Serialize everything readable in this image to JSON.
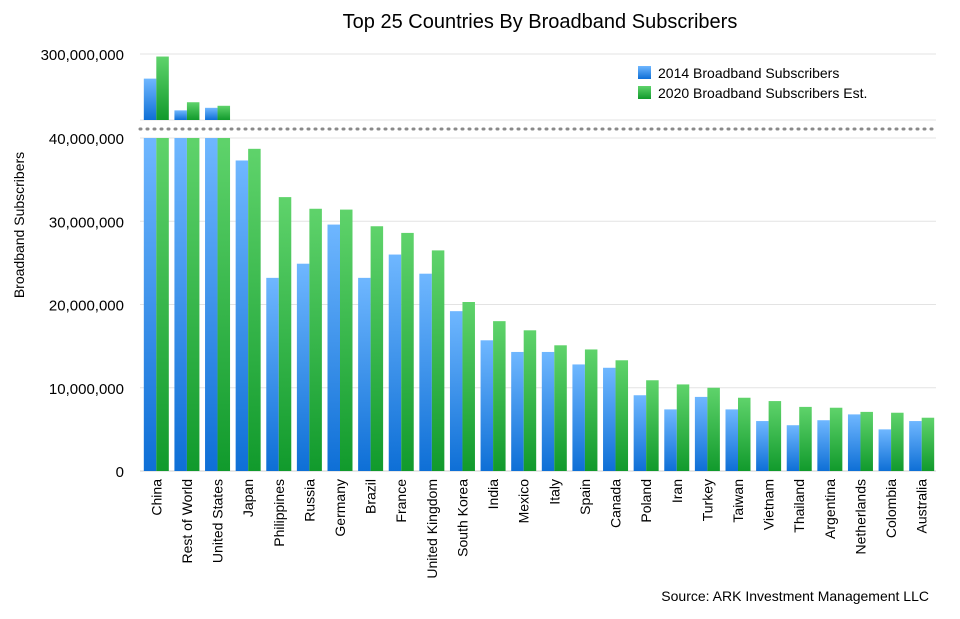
{
  "chart_data": {
    "type": "bar",
    "title": "Top 25 Countries By Broadband Subscribers",
    "ylabel": "Broadband Subscribers",
    "source": "Source: ARK Investment Management LLC",
    "y_axis_broken": true,
    "ylim_lower": [
      0,
      40000000
    ],
    "ylim_upper_max": 300000000,
    "yticks_lower": [
      "0",
      "10,000,000",
      "20,000,000",
      "30,000,000",
      "40,000,000"
    ],
    "ytick_upper": "300,000,000",
    "legend_position": "top-right",
    "grid": true,
    "categories": [
      "China",
      "Rest of World",
      "United States",
      "Japan",
      "Philippines",
      "Russia",
      "Germany",
      "Brazil",
      "France",
      "United Kingdom",
      "South Korea",
      "India",
      "Mexico",
      "Italy",
      "Spain",
      "Canada",
      "Poland",
      "Iran",
      "Turkey",
      "Taiwan",
      "Vietnam",
      "Thailand",
      "Argentina",
      "Netherlands",
      "Colombia",
      "Australia"
    ],
    "series": [
      {
        "name": "2014 Broadband Subscribers",
        "color": "#2f8fee",
        "values": [
          203000000,
          78000000,
          88000000,
          37300000,
          23200000,
          24900000,
          29600000,
          23200000,
          26000000,
          23700000,
          19200000,
          15700000,
          14300000,
          14300000,
          12800000,
          12400000,
          9100000,
          7400000,
          8900000,
          7400000,
          6000000,
          5500000,
          6100000,
          6800000,
          5000000,
          6000000
        ]
      },
      {
        "name": "2020 Broadband Subscribers Est.",
        "color": "#23b23a",
        "values": [
          290000000,
          110000000,
          96000000,
          38700000,
          32900000,
          31500000,
          31400000,
          29400000,
          28600000,
          26500000,
          20300000,
          18000000,
          16900000,
          15100000,
          14600000,
          13300000,
          10900000,
          10400000,
          10000000,
          8800000,
          8400000,
          7700000,
          7600000,
          7100000,
          7000000,
          6400000
        ]
      }
    ]
  }
}
